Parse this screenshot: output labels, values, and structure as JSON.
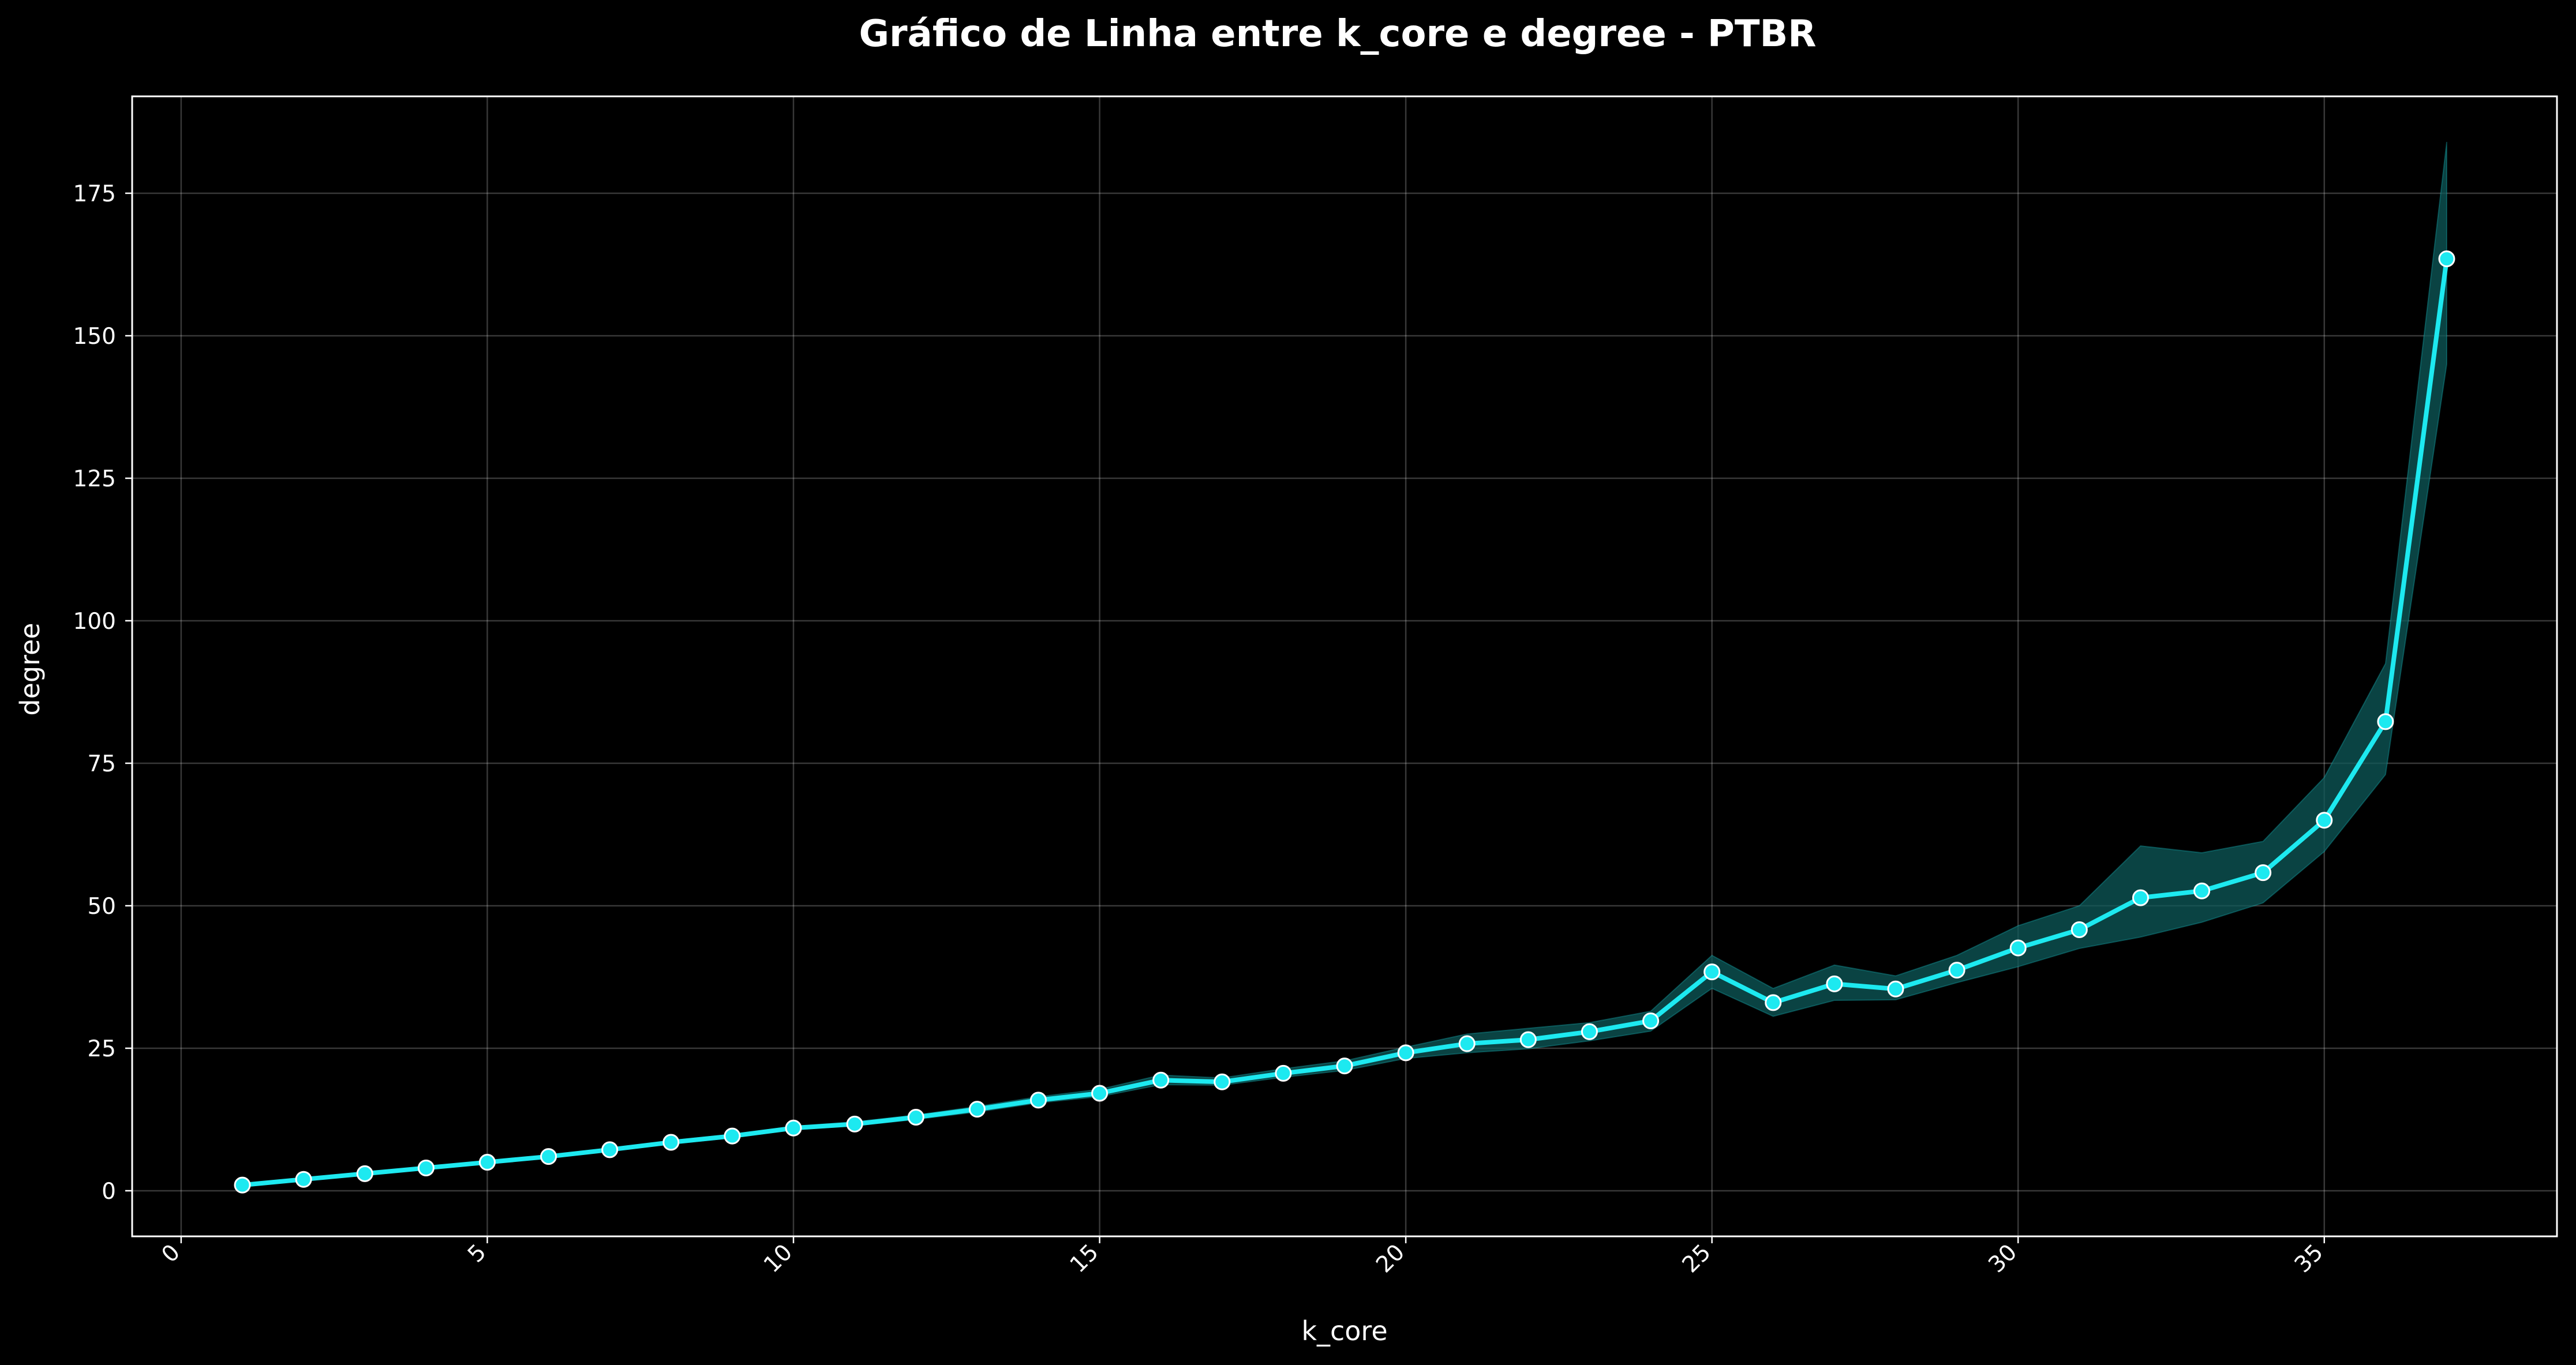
{
  "chart_data": {
    "type": "line",
    "title": "Gráfico de Linha entre k_core e degree - PTBR",
    "xlabel": "k_core",
    "ylabel": "degree",
    "xlim": [
      -0.8,
      38.8
    ],
    "ylim": [
      -8,
      192
    ],
    "xticks": [
      0,
      5,
      10,
      15,
      20,
      25,
      30,
      35
    ],
    "yticks": [
      0,
      25,
      50,
      75,
      100,
      125,
      150,
      175
    ],
    "grid": true,
    "legend": "none",
    "colors": {
      "background": "#000000",
      "line": "#1de9f0",
      "band": "#0d5a5a",
      "marker_edge": "#ffffff",
      "text": "#ffffff"
    },
    "series": [
      {
        "x": [
          1,
          2,
          3,
          4,
          5,
          6,
          7,
          8,
          9,
          10,
          11,
          12,
          13,
          14,
          15,
          16,
          17,
          18,
          19,
          20,
          21,
          22,
          23,
          24,
          25,
          26,
          27,
          28,
          29,
          30,
          31,
          32,
          33,
          34,
          35,
          36,
          37
        ],
        "values": [
          1,
          2,
          3,
          4,
          5,
          6,
          7.2,
          8.5,
          9.6,
          11,
          11.7,
          12.9,
          14.3,
          15.9,
          17.1,
          19.4,
          19.1,
          20.6,
          21.9,
          24.2,
          25.8,
          26.5,
          27.9,
          29.8,
          38.4,
          33,
          36.3,
          35.4,
          38.7,
          42.6,
          45.8,
          51.4,
          52.6,
          55.8,
          65,
          82.3,
          163.5
        ],
        "ci_lower": [
          1,
          2,
          3,
          4,
          5,
          6,
          7,
          8.2,
          9.3,
          10.7,
          11.4,
          12.5,
          13.8,
          15.4,
          16.5,
          18.6,
          18.5,
          19.9,
          21.1,
          23.2,
          24.2,
          24.9,
          26.3,
          28,
          35.5,
          30.6,
          33.4,
          33.5,
          36.5,
          39.3,
          42.5,
          44.5,
          47.1,
          50.5,
          59.5,
          73,
          145
        ],
        "ci_upper": [
          1,
          2,
          3,
          4,
          5,
          6,
          7.4,
          8.8,
          9.9,
          11.3,
          12.1,
          13.3,
          14.8,
          16.5,
          17.8,
          20.3,
          19.8,
          21.4,
          22.8,
          25.2,
          27.5,
          28.5,
          29.5,
          31.5,
          41.3,
          35.5,
          39.6,
          37.7,
          41.3,
          46.5,
          50,
          60.5,
          59.3,
          61.3,
          72.5,
          92.5,
          184
        ]
      }
    ]
  }
}
